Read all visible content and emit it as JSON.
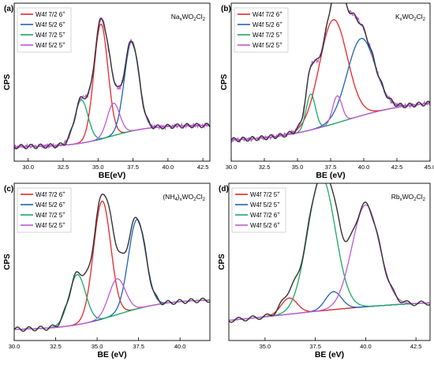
{
  "chart_data": [
    {
      "type": "line",
      "panel_label": "(a)",
      "sample": {
        "prefix": "Na",
        "sub1": "x",
        "mid": "WO",
        "sub2": "2",
        "mid2": "Cl",
        "sub3": "2"
      },
      "xlabel": "BE(eV)",
      "ylabel": "CPS",
      "xlim": [
        29,
        43
      ],
      "xticks": [
        "30.0",
        "32.5",
        "35.0",
        "37.5",
        "40.0",
        "42.5"
      ],
      "xtick_values": [
        30,
        32.5,
        35,
        37.5,
        40,
        42.5
      ],
      "grid": false,
      "legend_position": "top-left",
      "background": {
        "start": 0.02,
        "end": 0.14,
        "s_center": 36.0,
        "s_width": 1.4
      },
      "raw_noise": true,
      "peaks": [
        {
          "legend": "W4f 7/2 6",
          "sup": "+",
          "color": "#e8262a",
          "center": 35.2,
          "height": 0.64,
          "width": 0.5
        },
        {
          "legend": "W4f 5/2 6",
          "sup": "+",
          "color": "#1f63b5",
          "center": 37.4,
          "height": 0.5,
          "width": 0.52
        },
        {
          "legend": "W4f 7/2 5",
          "sup": "+",
          "color": "#1aa864",
          "center": 33.8,
          "height": 0.24,
          "width": 0.48
        },
        {
          "legend": "W4f 5/2 5",
          "sup": "+",
          "color": "#c257d6",
          "center": 36.1,
          "height": 0.18,
          "width": 0.45
        }
      ],
      "envelope_color": "#333333",
      "background_color": "#33a13a",
      "raw_color": "#c457d9"
    },
    {
      "type": "line",
      "panel_label": "(b)",
      "sample": {
        "prefix": "K",
        "sub1": "x",
        "mid": "WO",
        "sub2": "2",
        "mid2": "Cl",
        "sub3": "2"
      },
      "xlabel": "BE (eV)",
      "ylabel": "CPS",
      "xlim": [
        30,
        45
      ],
      "xticks": [
        "30.0",
        "32.5",
        "35.0",
        "37.5",
        "40.0",
        "42.5",
        "45.0"
      ],
      "xtick_values": [
        30,
        32.5,
        35,
        37.5,
        40,
        42.5,
        45
      ],
      "grid": false,
      "legend_position": "top-left",
      "background": {
        "start": 0.05,
        "end": 0.28,
        "s_center": 38.5,
        "s_width": 2.6
      },
      "raw_noise": true,
      "peaks": [
        {
          "legend": "W4f 7/2 6",
          "sup": "+",
          "color": "#e8262a",
          "center": 37.7,
          "height": 0.58,
          "width": 1.05
        },
        {
          "legend": "W4f 5/2 6",
          "sup": "+",
          "color": "#1f63b5",
          "center": 39.8,
          "height": 0.43,
          "width": 1.05
        },
        {
          "legend": "W4f 7/2 5",
          "sup": "+",
          "color": "#1aa864",
          "center": 36.0,
          "height": 0.2,
          "width": 0.35
        },
        {
          "legend": "W4f 5/2 5",
          "sup": "+",
          "color": "#c257d6",
          "center": 38.0,
          "height": 0.15,
          "width": 0.35
        }
      ],
      "envelope_color": "#333333",
      "background_color": "#33a13a",
      "raw_color": "#c457d9"
    },
    {
      "type": "line",
      "panel_label": "(c)",
      "sample": {
        "prefix": "(NH",
        "sub1": "4",
        "mid": ")",
        "sub2": "x",
        "mid2": "WO",
        "sub3": "2",
        "tail": "Cl",
        "sub4": "2"
      },
      "xlabel": "BE (eV)",
      "ylabel": "CPS",
      "xlim": [
        30,
        41.8
      ],
      "xticks": [
        "30.0",
        "32.5",
        "35.0",
        "37.5",
        "40.0"
      ],
      "xtick_values": [
        30,
        32.5,
        35,
        37.5,
        40
      ],
      "grid": false,
      "legend_position": "top-left",
      "background": {
        "start": 0.0,
        "end": 0.17,
        "s_center": 36.2,
        "s_width": 1.5
      },
      "raw_noise": false,
      "peaks": [
        {
          "legend": "W4f 7/2 6",
          "sup": "+",
          "color": "#e8262a",
          "center": 35.3,
          "height": 0.66,
          "width": 0.52
        },
        {
          "legend": "W4f 5/2 6",
          "sup": "+",
          "color": "#1f63b5",
          "center": 37.4,
          "height": 0.5,
          "width": 0.52
        },
        {
          "legend": "W4f 7/2 5",
          "sup": "+",
          "color": "#1aa864",
          "center": 33.8,
          "height": 0.28,
          "width": 0.5
        },
        {
          "legend": "W4f 5/2 5",
          "sup": "+",
          "color": "#c257d6",
          "center": 36.2,
          "height": 0.2,
          "width": 0.5
        }
      ],
      "envelope_color": "#333333",
      "background_color": "#e0a020",
      "raw_color": "#333333"
    },
    {
      "type": "line",
      "panel_label": "(d)",
      "sample": {
        "prefix": "Rb",
        "sub1": "x",
        "mid": "WO",
        "sub2": "2",
        "mid2": "Cl",
        "sub3": "2"
      },
      "xlabel": "BE (eV)",
      "ylabel": "CPS",
      "xlim": [
        33.2,
        43.2
      ],
      "xticks": [
        "35.0",
        "37.5",
        "40.0",
        "42.5"
      ],
      "xtick_values": [
        35,
        37.5,
        40,
        42.5
      ],
      "grid": false,
      "legend_position": "top-left",
      "background": {
        "start": 0.0,
        "end": 0.17,
        "s_center": 36.0,
        "s_width": 3.5
      },
      "raw_noise": false,
      "peaks": [
        {
          "legend": "W4f 7/2 5",
          "sup": "+",
          "color": "#e8262a",
          "center": 36.2,
          "height": 0.09,
          "width": 0.4
        },
        {
          "legend": "W4f 5/2 5",
          "sup": "+",
          "color": "#1f63b5",
          "center": 38.4,
          "height": 0.1,
          "width": 0.4
        },
        {
          "legend": "W4f 7/2 6",
          "sup": "+",
          "color": "#1aa864",
          "center": 37.8,
          "height": 0.75,
          "width": 0.68
        },
        {
          "legend": "W4f 5/2 6",
          "sup": "+",
          "color": "#c257d6",
          "center": 40.0,
          "height": 0.57,
          "width": 0.68
        }
      ],
      "envelope_color": "#333333",
      "background_color": "#1aa864",
      "raw_color": "#333333"
    }
  ]
}
